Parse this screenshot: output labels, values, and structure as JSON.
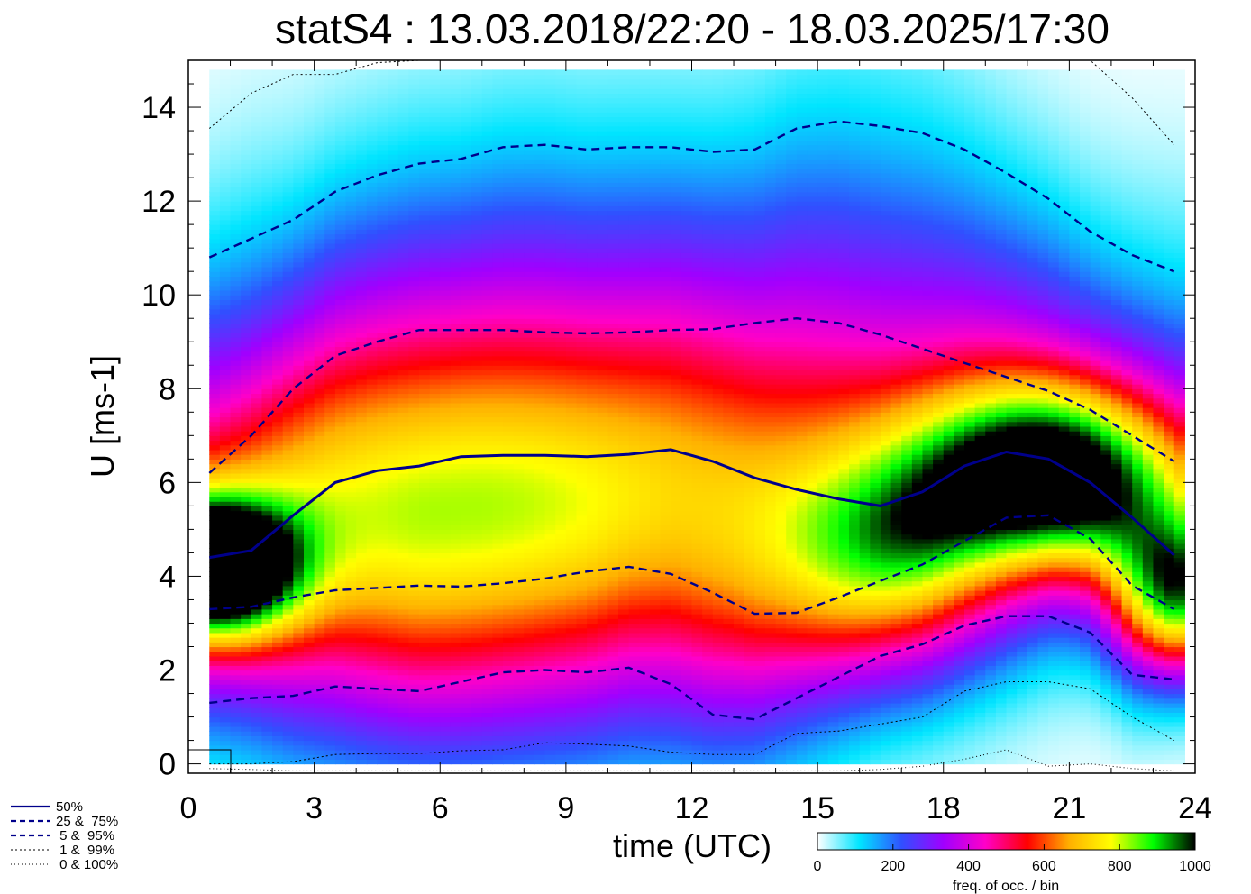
{
  "chart_data": {
    "type": "heatmap",
    "title": "statS4 : 13.03.2018/22:20 - 18.03.2025/17:30",
    "xlabel": "time (UTC)",
    "ylabel": "U [ms-1]",
    "xlim": [
      0,
      24
    ],
    "ylim": [
      -0.2,
      15
    ],
    "xticks": [
      0,
      3,
      6,
      9,
      12,
      15,
      18,
      21,
      24
    ],
    "yticks": [
      0,
      2,
      4,
      6,
      8,
      10,
      12,
      14
    ],
    "colorbar": {
      "label": "freq. of occ. / bin",
      "range": [
        0,
        1000
      ],
      "ticks": [
        0,
        200,
        400,
        600,
        800,
        1000
      ],
      "colors": [
        "#ffffff",
        "#00e5ff",
        "#3050ff",
        "#a000ff",
        "#ff00c8",
        "#ff0000",
        "#ffb000",
        "#ffff00",
        "#00ff00",
        "#000000"
      ]
    },
    "legend": {
      "position": "bottom-left",
      "items": [
        {
          "label": "50%",
          "style": "solid"
        },
        {
          "label": "25 &  75%",
          "style": "dashed"
        },
        {
          "label": " 5 &  95%",
          "style": "dashed"
        },
        {
          "label": " 1 &  99%",
          "style": "dotted"
        },
        {
          "label": " 0 & 100%",
          "style": "dotted-fine"
        }
      ]
    },
    "x": [
      0.5,
      1.5,
      2.5,
      3.5,
      4.5,
      5.5,
      6.5,
      7.5,
      8.5,
      9.5,
      10.5,
      11.5,
      12.5,
      13.5,
      14.5,
      15.5,
      16.5,
      17.5,
      18.5,
      19.5,
      20.5,
      21.5,
      22.5,
      23.5
    ],
    "series": [
      {
        "name": "50%",
        "style": "solid",
        "values": [
          4.4,
          4.55,
          5.3,
          6.0,
          6.25,
          6.35,
          6.55,
          6.58,
          6.58,
          6.55,
          6.6,
          6.7,
          6.45,
          6.1,
          5.85,
          5.65,
          5.5,
          5.8,
          6.35,
          6.65,
          6.5,
          6.0,
          5.25,
          4.45
        ]
      },
      {
        "name": "25%",
        "style": "dashed",
        "values": [
          3.3,
          3.35,
          3.55,
          3.7,
          3.75,
          3.8,
          3.78,
          3.85,
          3.95,
          4.1,
          4.2,
          4.05,
          3.65,
          3.2,
          3.22,
          3.55,
          3.9,
          4.25,
          4.75,
          5.25,
          5.3,
          4.8,
          3.8,
          3.3
        ]
      },
      {
        "name": "75%",
        "style": "dashed",
        "values": [
          6.2,
          7.0,
          8.0,
          8.7,
          9.0,
          9.25,
          9.25,
          9.25,
          9.2,
          9.18,
          9.2,
          9.25,
          9.27,
          9.4,
          9.5,
          9.4,
          9.15,
          8.85,
          8.55,
          8.25,
          7.95,
          7.55,
          7.0,
          6.45
        ]
      },
      {
        "name": "5%",
        "style": "dashed",
        "values": [
          1.3,
          1.4,
          1.45,
          1.65,
          1.6,
          1.55,
          1.75,
          1.95,
          2.0,
          1.95,
          2.05,
          1.7,
          1.05,
          0.95,
          1.4,
          1.85,
          2.3,
          2.55,
          2.95,
          3.15,
          3.15,
          2.8,
          1.9,
          1.8
        ]
      },
      {
        "name": "95%",
        "style": "dashed",
        "values": [
          10.8,
          11.2,
          11.6,
          12.2,
          12.55,
          12.8,
          12.9,
          13.15,
          13.2,
          13.1,
          13.15,
          13.15,
          13.05,
          13.1,
          13.55,
          13.7,
          13.6,
          13.45,
          13.1,
          12.6,
          12.05,
          11.35,
          10.85,
          10.5
        ]
      },
      {
        "name": "1%",
        "style": "dotted",
        "values": [
          0.0,
          0.0,
          0.05,
          0.2,
          0.22,
          0.22,
          0.28,
          0.3,
          0.45,
          0.42,
          0.38,
          0.25,
          0.2,
          0.2,
          0.65,
          0.7,
          0.85,
          1.0,
          1.55,
          1.75,
          1.75,
          1.6,
          1.0,
          0.5
        ]
      },
      {
        "name": "99%",
        "style": "dotted",
        "values": [
          13.55,
          14.3,
          14.7,
          14.7,
          14.95,
          15.0,
          15.0,
          15.0,
          15.0,
          15.0,
          15.0,
          15.0,
          15.0,
          15.0,
          15.0,
          15.0,
          15.0,
          15.0,
          15.0,
          15.0,
          15.0,
          15.0,
          14.2,
          13.2
        ]
      },
      {
        "name": "0%",
        "style": "dotted-fine",
        "values": [
          -0.1,
          -0.12,
          -0.15,
          -0.15,
          -0.15,
          -0.15,
          -0.15,
          -0.15,
          -0.15,
          -0.15,
          -0.15,
          -0.15,
          -0.15,
          -0.15,
          -0.15,
          -0.15,
          -0.12,
          -0.05,
          0.1,
          0.3,
          -0.05,
          0.0,
          -0.1,
          -0.15
        ]
      }
    ],
    "density_peaks": [
      {
        "x": 0.5,
        "y": 4.2,
        "value": 1000,
        "spread_x": 1.4,
        "spread_y": 1.0
      },
      {
        "x": 20.5,
        "y": 6.1,
        "value": 850,
        "spread_x": 2.2,
        "spread_y": 1.4
      },
      {
        "x": 17.0,
        "y": 4.2,
        "value": 480,
        "spread_x": 2.2,
        "spread_y": 1.8
      },
      {
        "x": 23.5,
        "y": 3.5,
        "value": 650,
        "spread_x": 1.0,
        "spread_y": 1.2
      },
      {
        "x": 7.0,
        "y": 4.0,
        "value": 520,
        "spread_x": 5.5,
        "spread_y": 3.0
      }
    ]
  }
}
